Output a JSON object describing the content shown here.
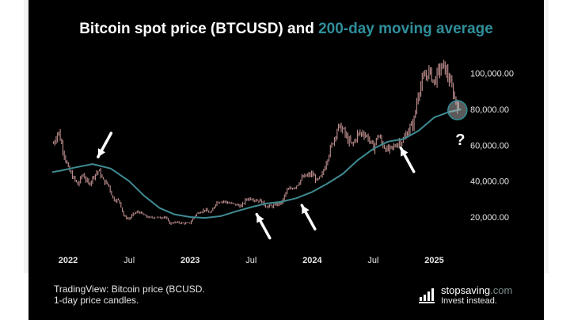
{
  "title": {
    "main": "Bitcoin spot price (BTCUSD) and ",
    "highlight": "200-day moving average"
  },
  "caption": {
    "line1": "TradingView: Bitcoin price (BCUSD.",
    "line2": "1-day price candles."
  },
  "brand": {
    "name_main": "stopsaving",
    "name_domain": ".com",
    "slogan": "Invest instead."
  },
  "annotation": {
    "question_mark": "?"
  },
  "colors": {
    "background": "#000000",
    "title": "#ffffff",
    "highlight": "#2f8f9b",
    "moving_average": "#3f8b93",
    "candles": "#e3a8a8",
    "arrows": "#ffffff"
  },
  "chart_data": {
    "type": "line",
    "title": "Bitcoin spot price (BTCUSD) and 200-day moving average",
    "xlabel": "",
    "ylabel": "",
    "x_ticks": [
      {
        "label": "2022",
        "t": 2022.0
      },
      {
        "label": "Jul",
        "t": 2022.5
      },
      {
        "label": "2023",
        "t": 2023.0
      },
      {
        "label": "Jul",
        "t": 2023.5
      },
      {
        "label": "2024",
        "t": 2024.0
      },
      {
        "label": "Jul",
        "t": 2024.5
      },
      {
        "label": "2025",
        "t": 2025.0
      }
    ],
    "y_ticks": [
      {
        "label": "20,000.00",
        "value": 20000
      },
      {
        "label": "40,000.00",
        "value": 40000
      },
      {
        "label": "60,000.00",
        "value": 60000
      },
      {
        "label": "80,000.00",
        "value": 80000
      },
      {
        "label": "100,000.00",
        "value": 100000
      }
    ],
    "xlim": [
      2021.87,
      2025.23
    ],
    "ylim": [
      5000,
      110000
    ],
    "series": [
      {
        "name": "Bitcoin price (daily candles)",
        "type": "candles",
        "points": [
          [
            2021.88,
            61000
          ],
          [
            2021.92,
            68000
          ],
          [
            2021.96,
            57000
          ],
          [
            2022.0,
            47000
          ],
          [
            2022.04,
            42000
          ],
          [
            2022.08,
            38000
          ],
          [
            2022.12,
            44000
          ],
          [
            2022.17,
            38000
          ],
          [
            2022.21,
            43000
          ],
          [
            2022.25,
            46000
          ],
          [
            2022.29,
            40000
          ],
          [
            2022.33,
            38000
          ],
          [
            2022.37,
            30000
          ],
          [
            2022.42,
            29000
          ],
          [
            2022.46,
            20000
          ],
          [
            2022.5,
            19000
          ],
          [
            2022.54,
            22000
          ],
          [
            2022.58,
            23000
          ],
          [
            2022.62,
            21000
          ],
          [
            2022.67,
            19500
          ],
          [
            2022.71,
            20000
          ],
          [
            2022.75,
            19500
          ],
          [
            2022.79,
            20500
          ],
          [
            2022.83,
            16500
          ],
          [
            2022.87,
            17000
          ],
          [
            2022.92,
            16800
          ],
          [
            2022.96,
            16500
          ],
          [
            2023.0,
            16700
          ],
          [
            2023.04,
            21000
          ],
          [
            2023.08,
            23000
          ],
          [
            2023.12,
            24000
          ],
          [
            2023.17,
            22000
          ],
          [
            2023.21,
            28000
          ],
          [
            2023.25,
            29000
          ],
          [
            2023.29,
            28500
          ],
          [
            2023.33,
            27500
          ],
          [
            2023.37,
            27000
          ],
          [
            2023.42,
            26000
          ],
          [
            2023.46,
            30000
          ],
          [
            2023.5,
            30500
          ],
          [
            2023.54,
            29500
          ],
          [
            2023.58,
            29000
          ],
          [
            2023.62,
            26000
          ],
          [
            2023.67,
            26000
          ],
          [
            2023.71,
            27000
          ],
          [
            2023.75,
            28000
          ],
          [
            2023.79,
            34500
          ],
          [
            2023.83,
            36000
          ],
          [
            2023.87,
            37500
          ],
          [
            2023.92,
            42000
          ],
          [
            2023.96,
            43000
          ],
          [
            2024.0,
            44000
          ],
          [
            2024.04,
            40000
          ],
          [
            2024.08,
            43000
          ],
          [
            2024.12,
            52000
          ],
          [
            2024.17,
            62000
          ],
          [
            2024.21,
            70000
          ],
          [
            2024.25,
            69000
          ],
          [
            2024.29,
            63000
          ],
          [
            2024.33,
            60000
          ],
          [
            2024.37,
            66000
          ],
          [
            2024.42,
            67000
          ],
          [
            2024.46,
            64000
          ],
          [
            2024.5,
            58000
          ],
          [
            2024.54,
            66000
          ],
          [
            2024.58,
            60000
          ],
          [
            2024.62,
            57000
          ],
          [
            2024.67,
            59000
          ],
          [
            2024.71,
            62000
          ],
          [
            2024.75,
            63000
          ],
          [
            2024.79,
            69000
          ],
          [
            2024.83,
            72000
          ],
          [
            2024.87,
            90000
          ],
          [
            2024.92,
            98000
          ],
          [
            2024.96,
            101000
          ],
          [
            2025.0,
            95000
          ],
          [
            2025.04,
            102000
          ],
          [
            2025.08,
            104000
          ],
          [
            2025.12,
            97000
          ],
          [
            2025.17,
            86000
          ],
          [
            2025.2,
            80000
          ]
        ]
      },
      {
        "name": "200-day moving average",
        "type": "line",
        "points": [
          [
            2021.87,
            45000
          ],
          [
            2021.95,
            46000
          ],
          [
            2022.05,
            47500
          ],
          [
            2022.2,
            49500
          ],
          [
            2022.35,
            47000
          ],
          [
            2022.5,
            40000
          ],
          [
            2022.62,
            32000
          ],
          [
            2022.75,
            25000
          ],
          [
            2022.87,
            21500
          ],
          [
            2023.0,
            20000
          ],
          [
            2023.12,
            19500
          ],
          [
            2023.25,
            20500
          ],
          [
            2023.37,
            23000
          ],
          [
            2023.5,
            25500
          ],
          [
            2023.62,
            27500
          ],
          [
            2023.75,
            28500
          ],
          [
            2023.87,
            30500
          ],
          [
            2024.0,
            34000
          ],
          [
            2024.12,
            38500
          ],
          [
            2024.25,
            44000
          ],
          [
            2024.37,
            51500
          ],
          [
            2024.5,
            58000
          ],
          [
            2024.62,
            62000
          ],
          [
            2024.75,
            63500
          ],
          [
            2024.87,
            68000
          ],
          [
            2025.0,
            75500
          ],
          [
            2025.12,
            78500
          ],
          [
            2025.22,
            80000
          ]
        ]
      }
    ],
    "annotations": [
      {
        "type": "arrow",
        "at": [
          2022.2,
          49500
        ],
        "direction": "down-left"
      },
      {
        "type": "arrow",
        "at": [
          2023.5,
          25500
        ],
        "direction": "up-left"
      },
      {
        "type": "arrow",
        "at": [
          2023.87,
          30500
        ],
        "direction": "up-left"
      },
      {
        "type": "arrow",
        "at": [
          2024.68,
          62500
        ],
        "direction": "up-left"
      },
      {
        "type": "circle",
        "at": [
          2025.19,
          79500
        ]
      },
      {
        "type": "text",
        "text": "?",
        "at": [
          2025.2,
          68000
        ]
      }
    ]
  }
}
